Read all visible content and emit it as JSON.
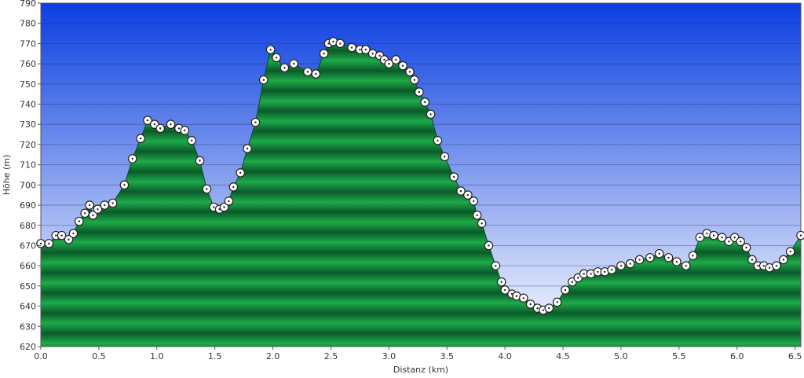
{
  "chart_data": {
    "type": "area",
    "title": "",
    "xlabel": "Distanz  (km)",
    "ylabel": "Höhe (m)",
    "xlim": [
      0.0,
      6.55
    ],
    "ylim": [
      620,
      790
    ],
    "x_ticks": [
      0.0,
      0.5,
      1.0,
      1.5,
      2.0,
      2.5,
      3.0,
      3.5,
      4.0,
      4.5,
      5.0,
      5.5,
      6.0,
      6.5
    ],
    "x_tick_labels": [
      "0.0",
      "0.5",
      "1.0",
      "1.5",
      "2.0",
      "2.5",
      "3.0",
      "3.5",
      "4.0",
      "4.5",
      "5.0",
      "5.5",
      "6.0",
      "6.5"
    ],
    "y_ticks": [
      620,
      630,
      640,
      650,
      660,
      670,
      680,
      690,
      700,
      710,
      720,
      730,
      740,
      750,
      760,
      770,
      780,
      790
    ],
    "y_tick_labels": [
      "620",
      "630",
      "640",
      "650",
      "660",
      "670",
      "680",
      "690",
      "700",
      "710",
      "720",
      "730",
      "740",
      "750",
      "760",
      "770",
      "780",
      "790"
    ],
    "grid": true,
    "legend": "none",
    "colors": {
      "sky_top": "#0a3ee0",
      "sky_bottom": "#ffffff",
      "terrain_dark": "#0a5a28",
      "terrain_light": "#1eaa4a",
      "marker_fill": "#ffffff",
      "marker_stroke": "#222222"
    },
    "series": [
      {
        "x": [
          0.0,
          0.07,
          0.13,
          0.18,
          0.24,
          0.28,
          0.33,
          0.38,
          0.42,
          0.45,
          0.49,
          0.55,
          0.62,
          0.72,
          0.79,
          0.86,
          0.92,
          0.98,
          1.03,
          1.12,
          1.19,
          1.24,
          1.3,
          1.37,
          1.43,
          1.49,
          1.54,
          1.58,
          1.62,
          1.66,
          1.72,
          1.78,
          1.85,
          1.92,
          1.98,
          2.03,
          2.1,
          2.18,
          2.3,
          2.37,
          2.44,
          2.48,
          2.52,
          2.58,
          2.68,
          2.75,
          2.8,
          2.86,
          2.92,
          2.96,
          3.0,
          3.06,
          3.12,
          3.18,
          3.22,
          3.26,
          3.31,
          3.36,
          3.42,
          3.48,
          3.56,
          3.62,
          3.68,
          3.73,
          3.76,
          3.8,
          3.86,
          3.92,
          3.97,
          4.0,
          4.06,
          4.1,
          4.16,
          4.22,
          4.28,
          4.33,
          4.38,
          4.45,
          4.52,
          4.58,
          4.63,
          4.68,
          4.74,
          4.8,
          4.86,
          4.92,
          5.0,
          5.08,
          5.16,
          5.25,
          5.33,
          5.41,
          5.48,
          5.56,
          5.62,
          5.68,
          5.74,
          5.8,
          5.87,
          5.93,
          5.98,
          6.03,
          6.08,
          6.13,
          6.18,
          6.23,
          6.28,
          6.34,
          6.4,
          6.46,
          6.55
        ],
        "y": [
          671,
          671,
          675,
          675,
          673,
          676,
          682,
          686,
          690,
          685,
          688,
          690,
          691,
          700,
          713,
          723,
          732,
          730,
          728,
          730,
          728,
          727,
          722,
          712,
          698,
          689,
          688,
          689,
          692,
          699,
          706,
          718,
          731,
          752,
          767,
          763,
          758,
          760,
          756,
          755,
          765,
          770,
          771,
          770,
          768,
          767,
          767,
          765,
          764,
          762,
          760,
          762,
          759,
          756,
          752,
          746,
          741,
          735,
          722,
          714,
          704,
          697,
          695,
          692,
          685,
          681,
          670,
          660,
          652,
          648,
          646,
          645,
          644,
          641,
          639,
          638,
          639,
          642,
          648,
          652,
          654,
          656,
          656,
          657,
          657,
          658,
          660,
          661,
          663,
          664,
          666,
          664,
          662,
          660,
          665,
          674,
          676,
          675,
          674,
          672,
          674,
          672,
          669,
          663,
          660,
          660,
          659,
          660,
          663,
          667,
          675
        ]
      }
    ]
  }
}
